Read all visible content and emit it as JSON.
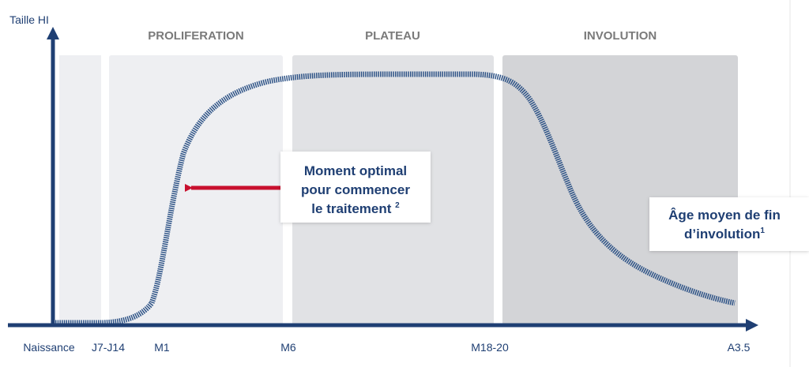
{
  "y_axis_label": "Taille HI",
  "phases": [
    "PROLIFERATION",
    "PLATEAU",
    "INVOLUTION"
  ],
  "x_labels": [
    "Naissance",
    "J7-J14",
    "M1",
    "M6",
    "M18-20",
    "A3.5"
  ],
  "annotations": [
    {
      "lines": [
        "Moment optimal",
        "pour commencer",
        "le traitement"
      ],
      "sup": "2"
    },
    {
      "lines": [
        "Âge moyen de fin",
        "d’involution"
      ],
      "sup": "1"
    }
  ]
}
